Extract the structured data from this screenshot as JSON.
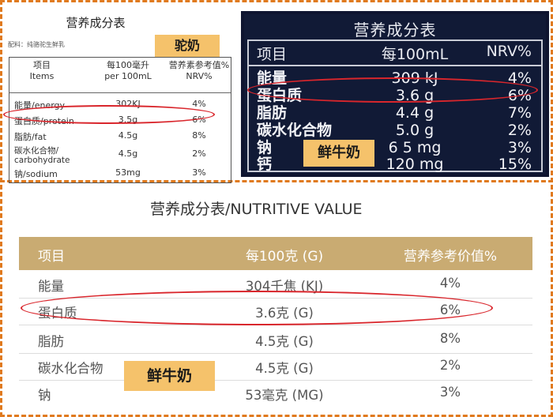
{
  "panel_camel": {
    "title": "营养成分表",
    "ingredients": "配料：纯骆驼生鲜乳",
    "tag": "驼奶",
    "headers": {
      "item": "项目\nItems",
      "per100": "每100毫升\nper 100mL",
      "nrv": "营养素参考值%\nNRV%"
    },
    "rows": [
      {
        "item": "能量/energy",
        "value": "302KJ",
        "nrv": "4%"
      },
      {
        "item": "蛋白质/protein",
        "value": "3.5g",
        "nrv": "6%"
      },
      {
        "item": "脂肪/fat",
        "value": "4.5g",
        "nrv": "8%"
      },
      {
        "item": "碳水化合物/\ncarbohydrate",
        "value": "4.5g",
        "nrv": "2%"
      },
      {
        "item": "钠/sodium",
        "value": "53mg",
        "nrv": "3%"
      }
    ]
  },
  "panel_navy": {
    "title": "营养成分表",
    "headers": {
      "item": "项目",
      "per100": "每100mL",
      "nrv": "NRV%"
    },
    "tag": "鲜牛奶",
    "rows": [
      {
        "item": "能量",
        "value": "309 kJ",
        "nrv": "4%"
      },
      {
        "item": "蛋白质",
        "value": "3.6 g",
        "nrv": "6%"
      },
      {
        "item": "脂肪",
        "value": "4.4 g",
        "nrv": "7%"
      },
      {
        "item": "碳水化合物",
        "value": "5.0 g",
        "nrv": "2%"
      },
      {
        "item": "钠",
        "value": "6 5 mg",
        "nrv": "3%"
      },
      {
        "item": "钙",
        "value": "120 mg",
        "nrv": "15%"
      }
    ]
  },
  "panel_bottom": {
    "title": "营养成分表/NUTRITIVE VALUE",
    "headers": {
      "item": "项目",
      "per100": "每100克 (G)",
      "nrv": "营养参考价值%"
    },
    "tag": "鲜牛奶",
    "rows": [
      {
        "item": "能量",
        "value": "304千焦 (KJ)",
        "nrv": "4%"
      },
      {
        "item": "蛋白质",
        "value": "3.6克 (G)",
        "nrv": "6%"
      },
      {
        "item": "脂肪",
        "value": "4.5克 (G)",
        "nrv": "8%"
      },
      {
        "item": "碳水化合物",
        "value": "4.5克 (G)",
        "nrv": "2%"
      },
      {
        "item": "钠",
        "value": "53毫克 (MG)",
        "nrv": "3%"
      }
    ]
  },
  "colors": {
    "highlight": "#d9262c",
    "tag": "#f5c26b",
    "frame": "#e07a1e",
    "navy": "#111a36",
    "gold": "#c9ab72"
  }
}
